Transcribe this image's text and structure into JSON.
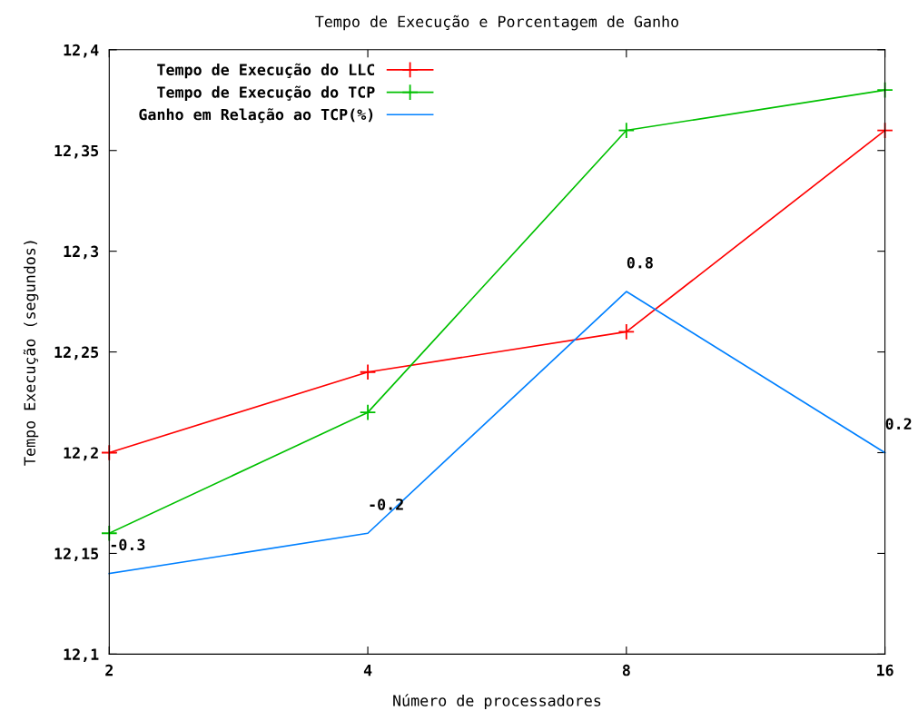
{
  "chart_data": {
    "type": "line",
    "title": "Tempo de Execução e Porcentagem de Ganho",
    "xlabel": "Número de processadores",
    "ylabel": "Tempo Execução (segundos)",
    "x": [
      2,
      4,
      8,
      16
    ],
    "log": "x",
    "xlim": [
      2,
      16
    ],
    "xticks": [
      2,
      4,
      8,
      16
    ],
    "series": [
      {
        "name": "Tempo de Execução do LLC",
        "color": "#ff0000",
        "marker": "cross",
        "values": [
          12.2,
          12.24,
          12.26,
          12.36
        ]
      },
      {
        "name": "Tempo de Execução do TCP",
        "color": "#00c000",
        "marker": "cross",
        "values": [
          12.16,
          12.22,
          12.36,
          12.38
        ]
      },
      {
        "name": "Ganho em Relação ao TCP(%)",
        "color": "#0080ff",
        "marker": "none",
        "values": [
          12.14,
          12.16,
          12.28,
          12.2
        ]
      }
    ],
    "annotations": [
      {
        "text": "-0.3",
        "x": 2,
        "y": 12.14
      },
      {
        "text": "-0.2",
        "x": 4,
        "y": 12.16
      },
      {
        "text": "0.8",
        "x": 8,
        "y": 12.28
      },
      {
        "text": "0.2",
        "x": 16,
        "y": 12.2
      }
    ],
    "ylim": [
      12.1,
      12.4
    ],
    "yticks": [
      {
        "value": 12.1,
        "label": "12,1"
      },
      {
        "value": 12.15,
        "label": "12,15"
      },
      {
        "value": 12.2,
        "label": "12,2"
      },
      {
        "value": 12.25,
        "label": "12,25"
      },
      {
        "value": 12.3,
        "label": "12,3"
      },
      {
        "value": 12.35,
        "label": "12,35"
      },
      {
        "value": 12.4,
        "label": "12,4"
      }
    ],
    "legend": "top left"
  }
}
